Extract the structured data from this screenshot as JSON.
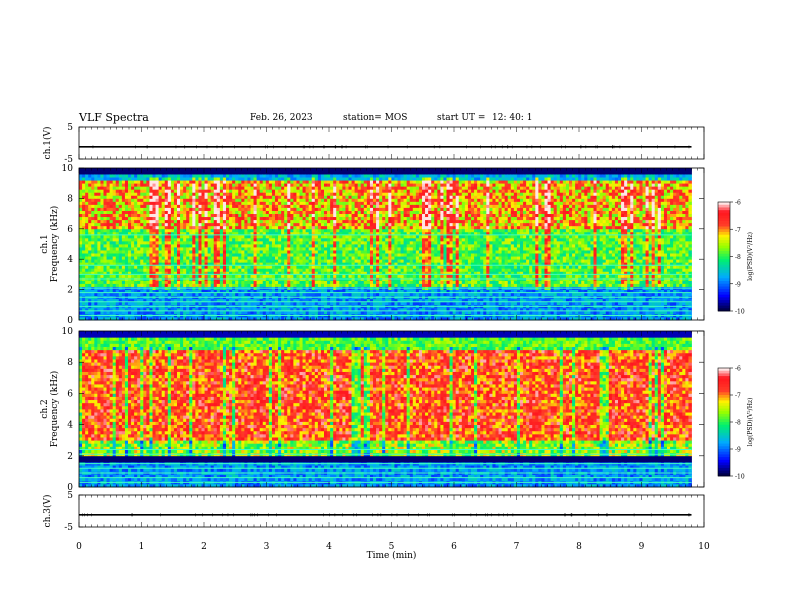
{
  "header": {
    "title": "VLF Spectra",
    "date": "Feb. 26, 2023",
    "station": "station= MOS",
    "start_label": "start UT =",
    "start_time": "12: 40: 1"
  },
  "chart_data": [
    {
      "type": "line",
      "ylabel": "ch.1(V)",
      "ylim": [
        -5,
        5
      ],
      "yticks": [
        "5",
        "-5"
      ],
      "xlim": [
        0,
        10
      ],
      "series": [
        {
          "values": [
            [
              0,
              -1.2
            ],
            [
              9.8,
              -1.2
            ]
          ]
        }
      ]
    },
    {
      "type": "heatmap",
      "ylabel": "ch.1\nFrequency (kHz)",
      "ylim": [
        0,
        10
      ],
      "yticks": [
        "0",
        "2",
        "4",
        "6",
        "8",
        "10"
      ],
      "xlim": [
        0,
        10
      ],
      "data_extent_min": 9.8,
      "description_colors": [
        "#ffffff",
        "#ff2a2a",
        "#ffff00",
        "#00ff60",
        "#00b0ff",
        "#0000ff",
        "#000030"
      ],
      "colorbar": {
        "label": "log(PSD)(V²/Hz)",
        "range": [
          -10,
          -6
        ],
        "ticks": [
          "-6",
          "-7",
          "-8",
          "-9",
          "-10"
        ]
      },
      "bands_khz": [
        0.3,
        0.6,
        0.9,
        1.2,
        1.5,
        1.8,
        2.1,
        2.7,
        3.0,
        3.6,
        5.6
      ]
    },
    {
      "type": "heatmap",
      "ylabel": "ch.2\nFrequency (kHz)",
      "ylim": [
        0,
        10
      ],
      "yticks": [
        "0",
        "2",
        "4",
        "6",
        "8",
        "10"
      ],
      "xlim": [
        0,
        10
      ],
      "data_extent_min": 9.8,
      "colorbar": {
        "label": "log(PSD)(V²/Hz)",
        "range": [
          -10,
          -6
        ],
        "ticks": [
          "-6",
          "-7",
          "-8",
          "-9",
          "-10"
        ]
      },
      "bands_khz": [
        0.3,
        0.6,
        0.9,
        1.2,
        1.5,
        2.1,
        2.4
      ]
    },
    {
      "type": "line",
      "ylabel": "ch.3(V)",
      "ylim": [
        -5,
        5
      ],
      "yticks": [
        "5",
        "-5"
      ],
      "xlim": [
        0,
        10
      ],
      "xlabel": "Time (min)",
      "xticks": [
        "0",
        "1",
        "2",
        "3",
        "4",
        "5",
        "6",
        "7",
        "8",
        "9",
        "10"
      ],
      "series": [
        {
          "values": [
            [
              0,
              -1.2
            ],
            [
              9.8,
              -1.2
            ]
          ]
        }
      ]
    }
  ]
}
